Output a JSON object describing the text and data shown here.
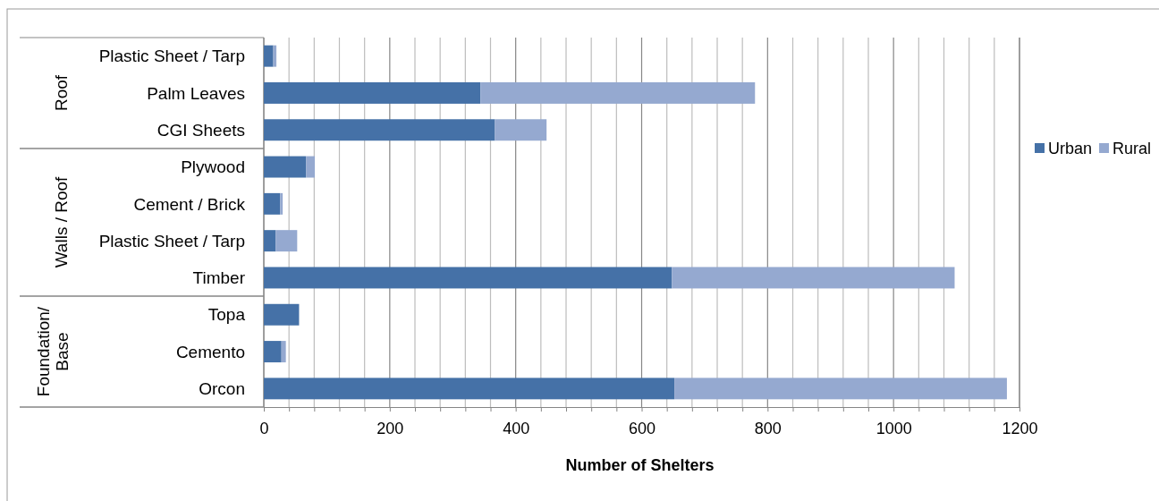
{
  "chart_data": {
    "type": "bar",
    "orientation": "horizontal",
    "stacked": true,
    "categories": [
      "Plastic Sheet / Tarp",
      "Palm Leaves",
      "CGI Sheets",
      "Plywood",
      "Cement / Brick",
      "Plastic Sheet / Tarp",
      "Timber",
      "Topa",
      "Cemento ",
      "Orcon"
    ],
    "series": [
      {
        "name": "Urban",
        "color": "#4571a7",
        "values": [
          15,
          344,
          367,
          67,
          26,
          19,
          648,
          56,
          28,
          652
        ]
      },
      {
        "name": "Rural",
        "color": "#95a9d0",
        "values": [
          5,
          436,
          82,
          14,
          4,
          34,
          449,
          0,
          7,
          528
        ]
      }
    ],
    "xlabel": "Number of Shelters",
    "xlim": [
      0,
      1200
    ],
    "xticks": [
      0,
      {
        "value": 40,
        "label": null
      },
      {
        "value": 80,
        "label": null
      },
      {
        "value": 120,
        "label": null
      },
      {
        "value": 160,
        "label": null
      },
      200,
      {
        "value": 240,
        "label": null
      },
      {
        "value": 280,
        "label": null
      },
      {
        "value": 320,
        "label": null
      },
      {
        "value": 360,
        "label": null
      },
      400,
      {
        "value": 440,
        "label": null
      },
      {
        "value": 480,
        "label": null
      },
      {
        "value": 520,
        "label": null
      },
      {
        "value": 560,
        "label": null
      },
      600,
      {
        "value": 640,
        "label": null
      },
      {
        "value": 680,
        "label": null
      },
      {
        "value": 720,
        "label": null
      },
      {
        "value": 760,
        "label": null
      },
      800,
      {
        "value": 840,
        "label": null
      },
      {
        "value": 880,
        "label": null
      },
      {
        "value": 920,
        "label": null
      },
      {
        "value": 960,
        "label": null
      },
      1000,
      {
        "value": 1040,
        "label": null
      },
      {
        "value": 1080,
        "label": null
      },
      {
        "value": 1120,
        "label": null
      },
      {
        "value": 1160,
        "label": null
      },
      1200
    ],
    "annotations": [
      "Roof",
      "Walls / Roof",
      "Foundation/\nBase"
    ],
    "grid": "x",
    "legend": "right"
  }
}
